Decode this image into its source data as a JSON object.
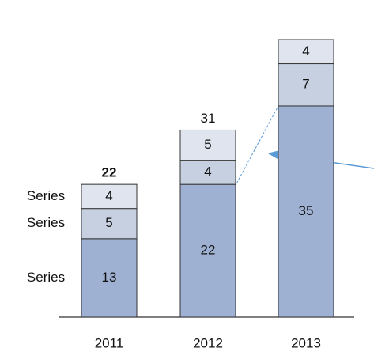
{
  "chart_data": {
    "type": "stacked-bar",
    "categories": [
      "2011",
      "2012",
      "2013"
    ],
    "series": [
      {
        "name": "Series",
        "color": "#9fb1d2",
        "values": [
          13,
          22,
          35
        ]
      },
      {
        "name": "Series",
        "color": "#c6d0e1",
        "values": [
          5,
          4,
          7
        ]
      },
      {
        "name": "Series",
        "color": "#dfe4ef",
        "values": [
          4,
          5,
          4
        ]
      }
    ],
    "totals": [
      22,
      31,
      null
    ]
  }
}
